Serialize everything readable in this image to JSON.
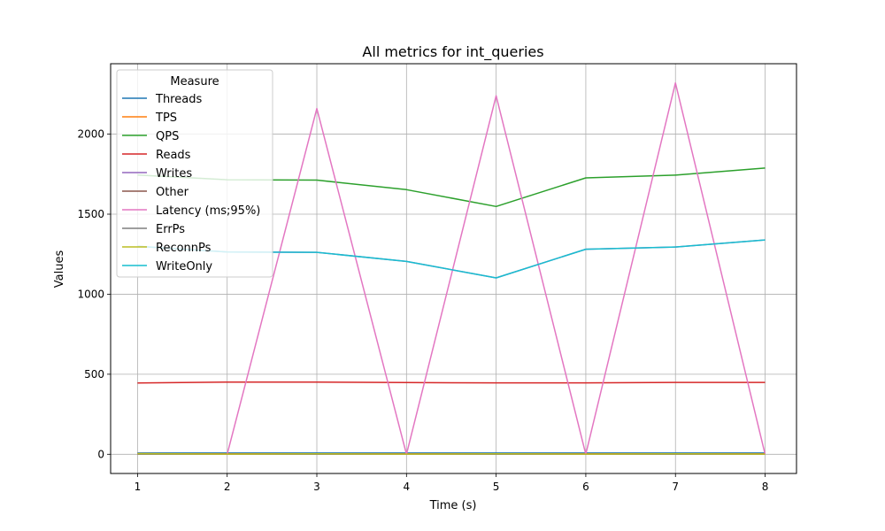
{
  "chart_data": {
    "type": "line",
    "title": "All metrics for int_queries",
    "xlabel": "Time (s)",
    "ylabel": "Values",
    "x": [
      1,
      2,
      3,
      4,
      5,
      6,
      7,
      8
    ],
    "xlim": [
      0.7,
      8.35
    ],
    "ylim": [
      -120,
      2440
    ],
    "xticks": [
      1,
      2,
      3,
      4,
      5,
      6,
      7,
      8
    ],
    "yticks": [
      0,
      500,
      1000,
      1500,
      2000
    ],
    "grid": true,
    "legend": {
      "title": "Measure",
      "placement": "top-left"
    },
    "series": [
      {
        "name": "Threads",
        "color": "#1f77b4",
        "values": [
          8,
          8,
          8,
          8,
          8,
          8,
          8,
          8
        ]
      },
      {
        "name": "TPS",
        "color": "#ff7f0e",
        "values": [
          4,
          2,
          3,
          2,
          3,
          2,
          3,
          2
        ]
      },
      {
        "name": "QPS",
        "color": "#2ca02c",
        "values": [
          1745,
          1715,
          1713,
          1653,
          1548,
          1727,
          1744,
          1788
        ]
      },
      {
        "name": "Reads",
        "color": "#d62728",
        "values": [
          445,
          451,
          451,
          448,
          446,
          446,
          449,
          449
        ]
      },
      {
        "name": "Writes",
        "color": "#9467bd",
        "values": [
          1300,
          1264,
          1262,
          1205,
          1102,
          1281,
          1295,
          1339
        ]
      },
      {
        "name": "Other",
        "color": "#8c564b",
        "values": [
          0,
          0,
          0,
          0,
          0,
          0,
          0,
          0
        ]
      },
      {
        "name": "Latency (ms;95%)",
        "color": "#e377c2",
        "values": [
          0,
          0,
          2160,
          0,
          2240,
          0,
          2320,
          0
        ]
      },
      {
        "name": "ErrPs",
        "color": "#7f7f7f",
        "values": [
          0,
          0,
          0,
          0,
          0,
          0,
          0,
          0
        ]
      },
      {
        "name": "ReconnPs",
        "color": "#bcbd22",
        "values": [
          4,
          1,
          3,
          1,
          3,
          1,
          3,
          1
        ]
      },
      {
        "name": "WriteOnly",
        "color": "#17becf",
        "values": [
          1300,
          1264,
          1262,
          1205,
          1102,
          1281,
          1295,
          1339
        ]
      }
    ]
  }
}
